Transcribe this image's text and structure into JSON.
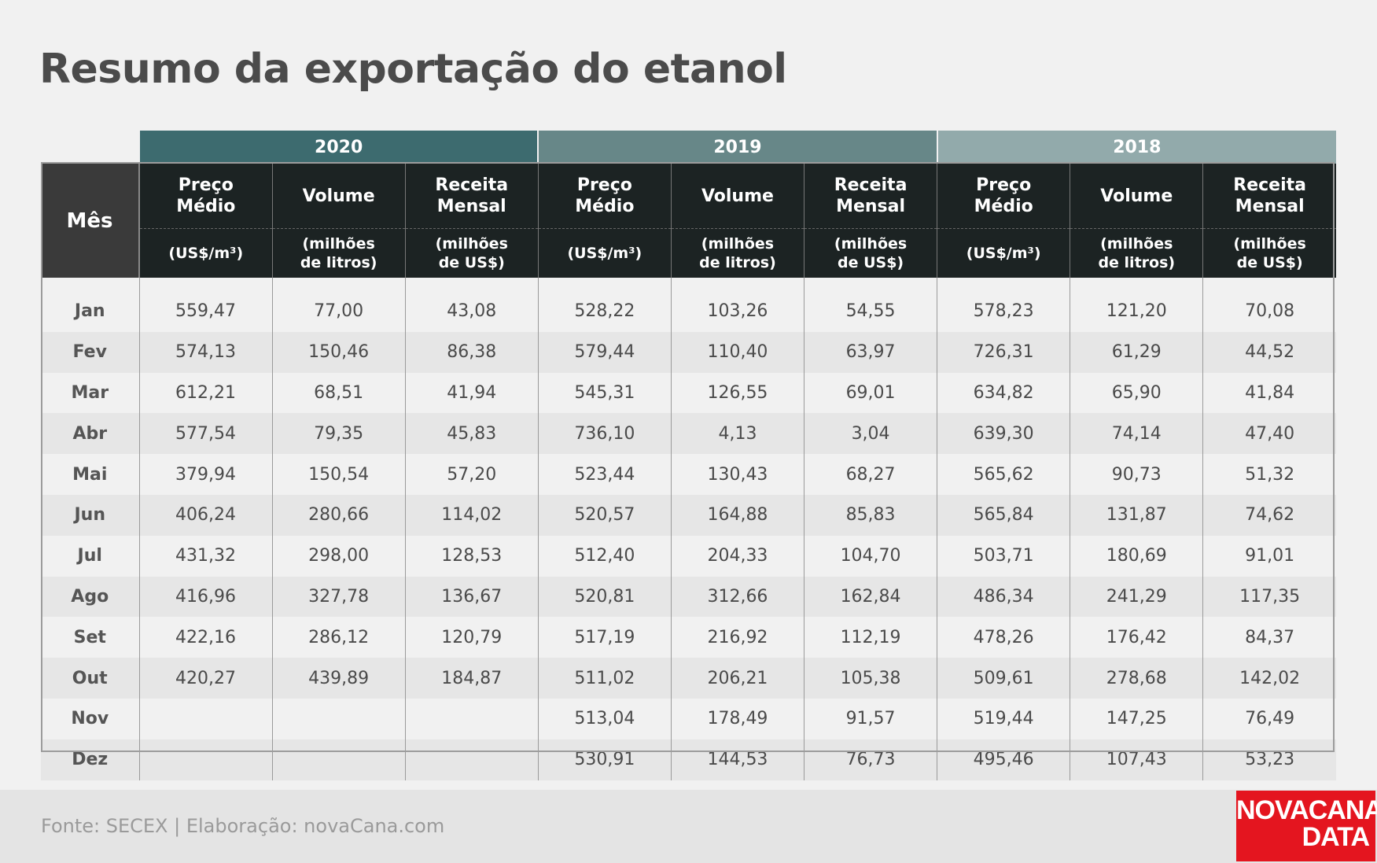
{
  "title": "Resumo da exportação do etanol",
  "source": "Fonte: SECEX | Elaboração: novaCana.com",
  "logo": {
    "line1": "NOVACANA",
    "line2": "DATA"
  },
  "colors": {
    "y2020": "#3d6b6f",
    "y2019": "#678788",
    "y2018": "#92aaab",
    "header_dark": "#1c2323",
    "logo_red": "#e4151f"
  },
  "chart_data": {
    "type": "table",
    "title": "Resumo da exportação do etanol",
    "row_header": "Mês",
    "years": [
      "2020",
      "2019",
      "2018"
    ],
    "columns": [
      {
        "name": "Preço\nMédio",
        "unit": "(US$/m³)"
      },
      {
        "name": "Volume",
        "unit": "(milhões\nde litros)"
      },
      {
        "name": "Receita\nMensal",
        "unit": "(milhões\nde US$)"
      }
    ],
    "rows": [
      {
        "mes": "Jan",
        "cells": [
          "559,47",
          "77,00",
          "43,08",
          "528,22",
          "103,26",
          "54,55",
          "578,23",
          "121,20",
          "70,08"
        ]
      },
      {
        "mes": "Fev",
        "cells": [
          "574,13",
          "150,46",
          "86,38",
          "579,44",
          "110,40",
          "63,97",
          "726,31",
          "61,29",
          "44,52"
        ]
      },
      {
        "mes": "Mar",
        "cells": [
          "612,21",
          "68,51",
          "41,94",
          "545,31",
          "126,55",
          "69,01",
          "634,82",
          "65,90",
          "41,84"
        ]
      },
      {
        "mes": "Abr",
        "cells": [
          "577,54",
          "79,35",
          "45,83",
          "736,10",
          "4,13",
          "3,04",
          "639,30",
          "74,14",
          "47,40"
        ]
      },
      {
        "mes": "Mai",
        "cells": [
          "379,94",
          "150,54",
          "57,20",
          "523,44",
          "130,43",
          "68,27",
          "565,62",
          "90,73",
          "51,32"
        ]
      },
      {
        "mes": "Jun",
        "cells": [
          "406,24",
          "280,66",
          "114,02",
          "520,57",
          "164,88",
          "85,83",
          "565,84",
          "131,87",
          "74,62"
        ]
      },
      {
        "mes": "Jul",
        "cells": [
          "431,32",
          "298,00",
          "128,53",
          "512,40",
          "204,33",
          "104,70",
          "503,71",
          "180,69",
          "91,01"
        ]
      },
      {
        "mes": "Ago",
        "cells": [
          "416,96",
          "327,78",
          "136,67",
          "520,81",
          "312,66",
          "162,84",
          "486,34",
          "241,29",
          "117,35"
        ]
      },
      {
        "mes": "Set",
        "cells": [
          "422,16",
          "286,12",
          "120,79",
          "517,19",
          "216,92",
          "112,19",
          "478,26",
          "176,42",
          "84,37"
        ]
      },
      {
        "mes": "Out",
        "cells": [
          "420,27",
          "439,89",
          "184,87",
          "511,02",
          "206,21",
          "105,38",
          "509,61",
          "278,68",
          "142,02"
        ]
      },
      {
        "mes": "Nov",
        "cells": [
          "",
          "",
          "",
          "513,04",
          "178,49",
          "91,57",
          "519,44",
          "147,25",
          "76,49"
        ]
      },
      {
        "mes": "Dez",
        "cells": [
          "",
          "",
          "",
          "530,91",
          "144,53",
          "76,73",
          "495,46",
          "107,43",
          "53,23"
        ]
      }
    ]
  }
}
